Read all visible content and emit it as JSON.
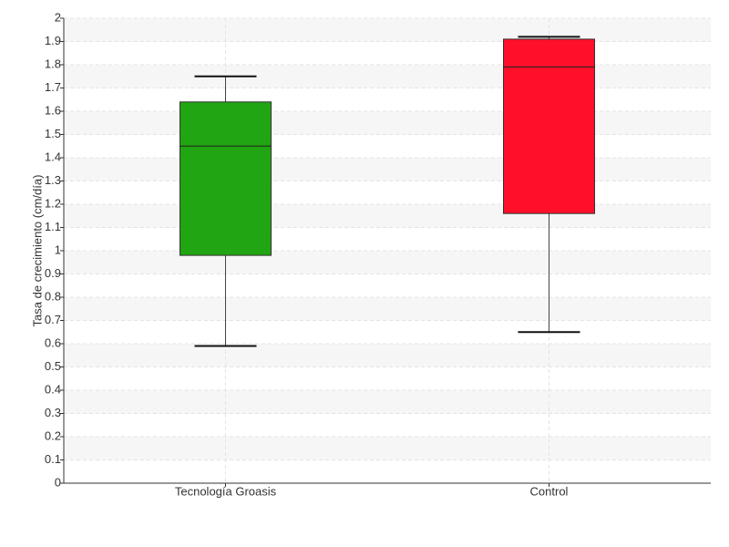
{
  "chart_data": {
    "type": "box",
    "y_label": "Tasa de crecimiento (cm/día)",
    "categories": [
      "Tecnología Groasis",
      "Control"
    ],
    "boxes": [
      {
        "min": 0.59,
        "q1": 0.98,
        "median": 1.45,
        "q3": 1.64,
        "max": 1.75,
        "color": "#22a512"
      },
      {
        "min": 0.65,
        "q1": 1.16,
        "median": 1.79,
        "q3": 1.91,
        "max": 1.92,
        "color": "#ff0f2a"
      }
    ],
    "ylim": [
      0,
      2
    ],
    "yticks": [
      0,
      0.1,
      0.2,
      0.3,
      0.4,
      0.5,
      0.6,
      0.7,
      0.8,
      0.9,
      1,
      1.1,
      1.2,
      1.3,
      1.4,
      1.5,
      1.6,
      1.7,
      1.8,
      1.9,
      2
    ],
    "grid": true
  }
}
